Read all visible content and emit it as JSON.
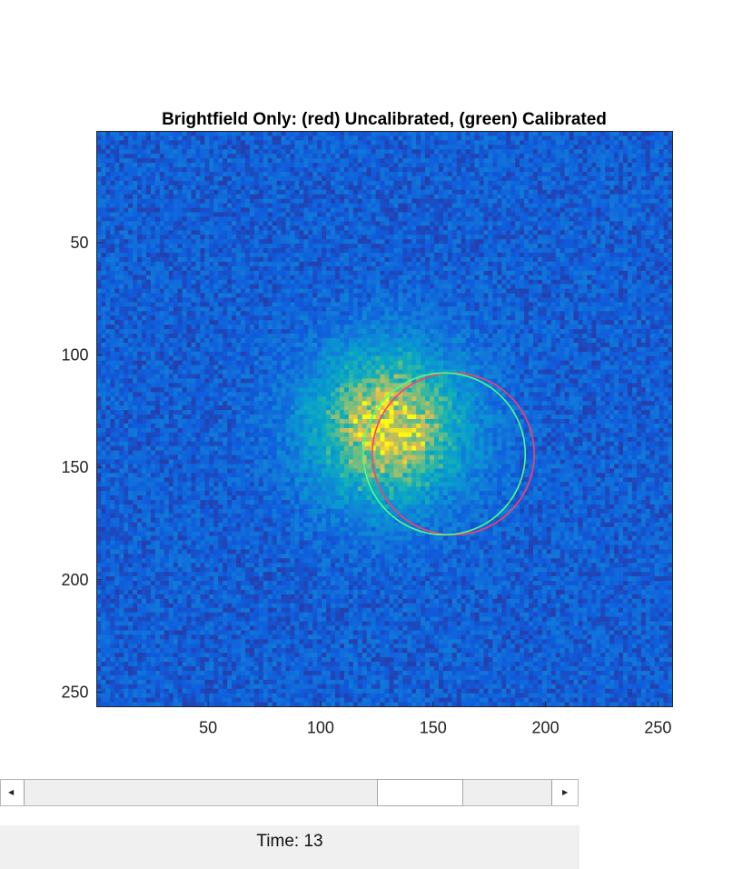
{
  "chart_data": {
    "type": "heatmap",
    "title": "Brightfield Only: (red) Uncalibrated, (green) Calibrated",
    "xlabel": "",
    "ylabel": "",
    "x_range": [
      0.5,
      256.5
    ],
    "y_range": [
      0.5,
      256.5
    ],
    "y_reversed": true,
    "x_ticks": [
      50,
      100,
      150,
      200,
      250
    ],
    "y_ticks": [
      50,
      100,
      150,
      200,
      250
    ],
    "x_tick_labels": [
      "50",
      "100",
      "150",
      "200",
      "250"
    ],
    "y_tick_labels": [
      "50",
      "100",
      "150",
      "200",
      "250"
    ],
    "colormap": "parula",
    "spot": {
      "center_x": 130,
      "center_y": 132,
      "description": "gaussian intensity blob"
    },
    "circles": [
      {
        "name": "Uncalibrated",
        "color": "#ff3b6b",
        "center_x": 159,
        "center_y": 144,
        "radius": 36
      },
      {
        "name": "Calibrated",
        "color": "#4cff8a",
        "center_x": 155,
        "center_y": 144,
        "radius": 36
      }
    ]
  },
  "slider": {
    "left_arrow": "◀",
    "right_arrow": "▶",
    "value_fraction": 0.72
  },
  "status": {
    "time_label": "Time: 13"
  },
  "colors": {
    "background_low": "#3d3ad8",
    "mid": "#2f9be0",
    "high": "#f2e21f"
  }
}
